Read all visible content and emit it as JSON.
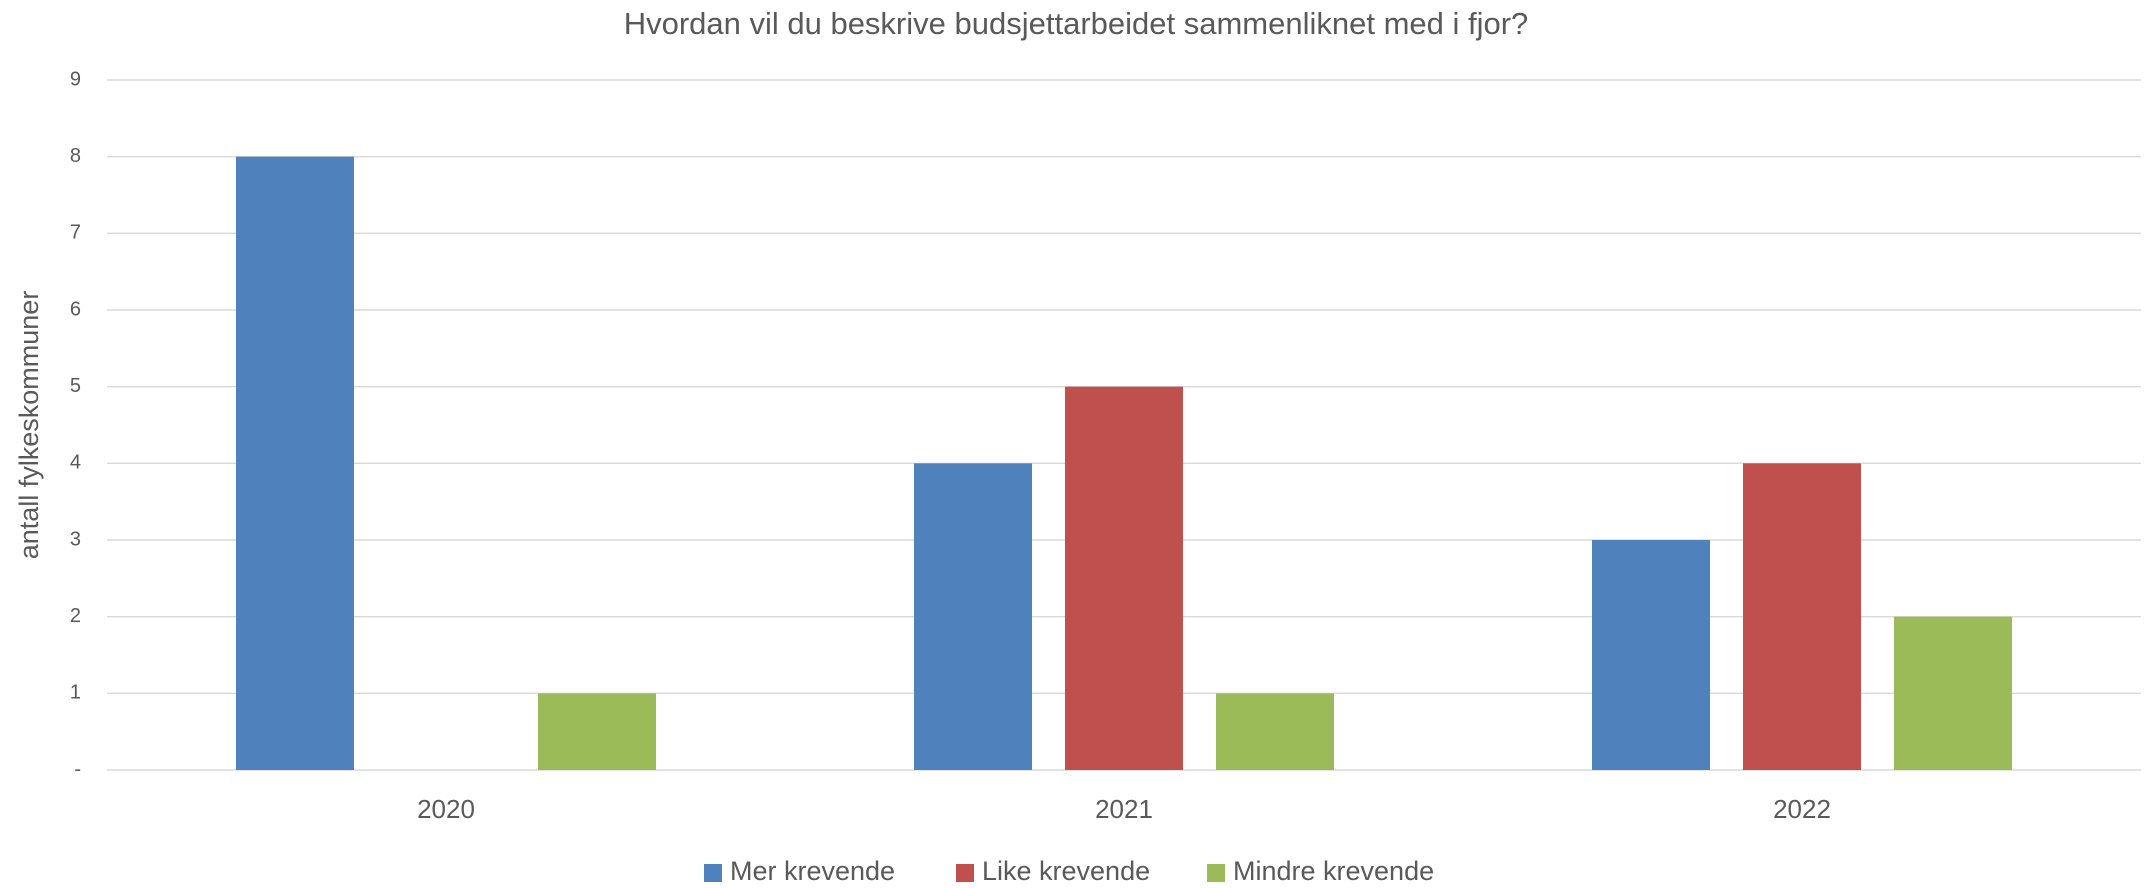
{
  "chart_data": {
    "type": "bar",
    "title": "Hvordan vil du beskrive budsjettarbeidet sammenliknet med i fjor?",
    "y_label": "antall fylkeskommuner",
    "categories": [
      "2020",
      "2021",
      "2022"
    ],
    "series": [
      {
        "name": "Mer krevende",
        "color": "#4f81bd",
        "values": [
          8,
          4,
          3
        ]
      },
      {
        "name": "Like krevende",
        "color": "#c0504d",
        "values": [
          0,
          5,
          4
        ]
      },
      {
        "name": "Mindre krevende",
        "color": "#9bbb59",
        "values": [
          1,
          1,
          2
        ]
      }
    ],
    "ylim": [
      0,
      9
    ],
    "yticks": [
      {
        "value": 0,
        "label": "-"
      },
      1,
      2,
      3,
      4,
      5,
      6,
      7,
      8,
      9
    ],
    "grid": true,
    "legend": "bottom"
  }
}
